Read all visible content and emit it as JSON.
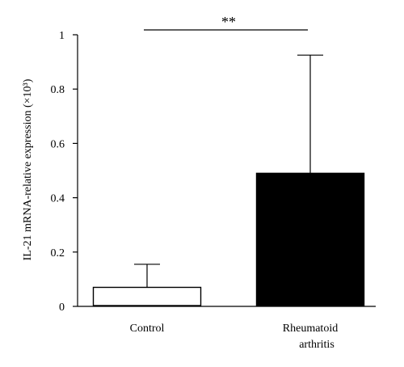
{
  "chart_data": {
    "type": "bar",
    "categories": [
      "Control",
      "Rheumatoid arthritis"
    ],
    "category_lines": [
      [
        "Control"
      ],
      [
        "Rheumatoid",
        "arthritis"
      ]
    ],
    "values": [
      0.07,
      0.49
    ],
    "error_upper": [
      0.155,
      0.925
    ],
    "bar_colors": [
      "#ffffff",
      "#000000"
    ],
    "ylabel": "IL-21 mRNA-relative expression (×10³)",
    "ylim": [
      0,
      1
    ],
    "yticks": [
      0,
      0.2,
      0.4,
      0.6,
      0.8,
      1
    ],
    "ytick_labels": [
      "0",
      "0.2",
      "0.4",
      "0.6",
      "0.8",
      "1"
    ],
    "significance": {
      "label": "**",
      "between": [
        0,
        1
      ]
    },
    "grid": false,
    "legend": "none"
  }
}
